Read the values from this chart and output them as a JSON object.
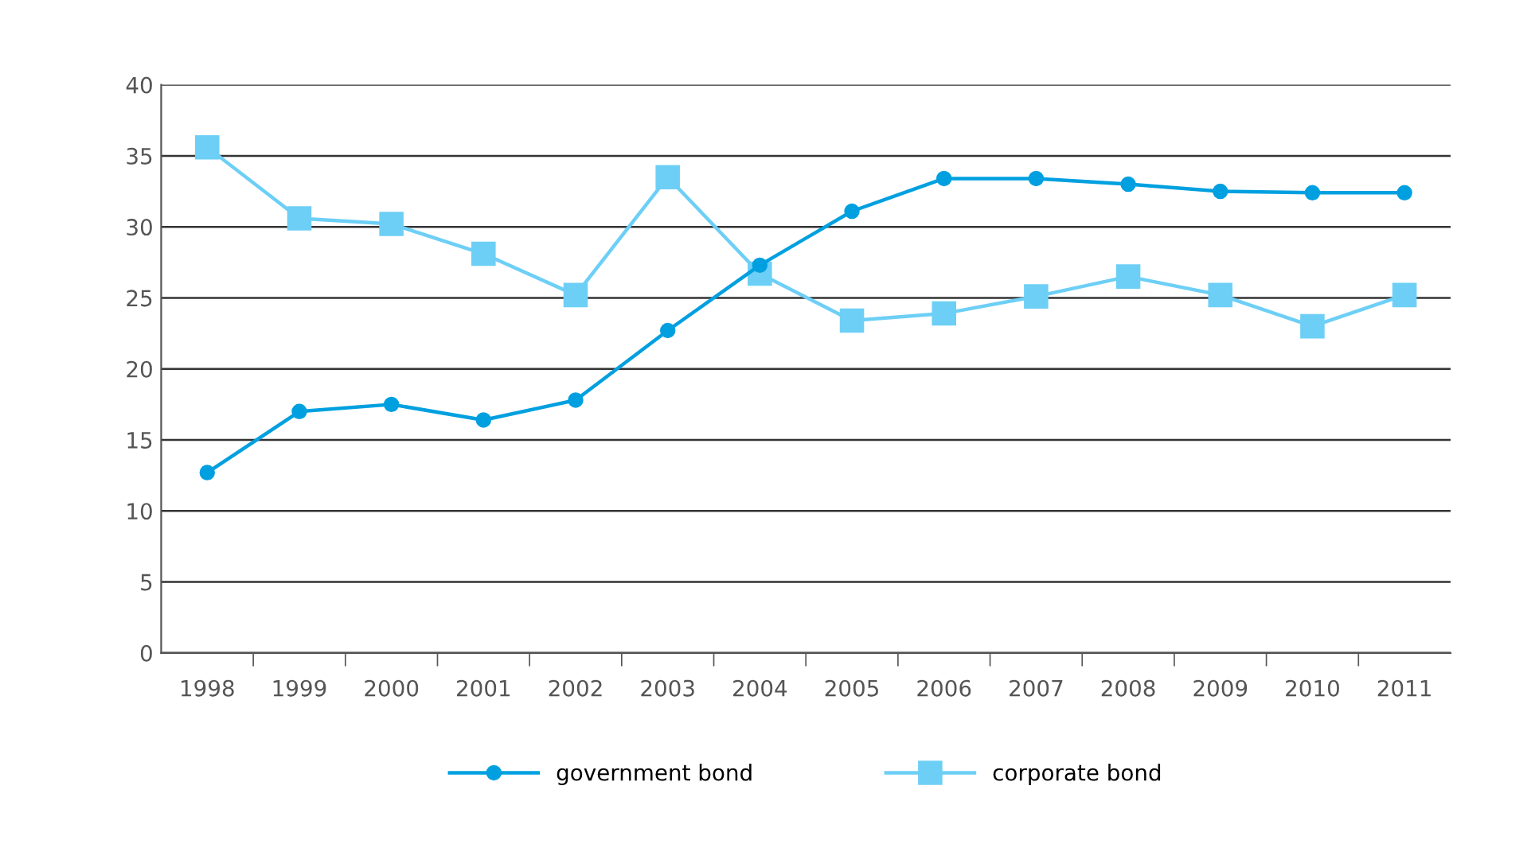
{
  "chart_data": {
    "type": "line",
    "categories": [
      "1998",
      "1999",
      "2000",
      "2001",
      "2002",
      "2003",
      "2004",
      "2005",
      "2006",
      "2007",
      "2008",
      "2009",
      "2010",
      "2011"
    ],
    "series": [
      {
        "name": "government bond",
        "color": "#00a0e0",
        "marker": "circle",
        "values": [
          12.7,
          17.0,
          17.5,
          16.4,
          17.8,
          22.7,
          27.3,
          31.1,
          33.4,
          33.4,
          33.0,
          32.5,
          32.4,
          32.4
        ]
      },
      {
        "name": "corporate bond",
        "color": "#6dcff6",
        "marker": "square",
        "values": [
          35.6,
          30.6,
          30.2,
          28.1,
          25.2,
          33.5,
          26.7,
          23.4,
          23.9,
          25.1,
          26.5,
          25.2,
          23.0,
          25.2
        ]
      }
    ],
    "ylim": [
      0,
      40
    ],
    "yticks": [
      0,
      5,
      10,
      15,
      20,
      25,
      30,
      35,
      40
    ],
    "grid": "y",
    "legend": "bottom",
    "line_style": "solid"
  }
}
